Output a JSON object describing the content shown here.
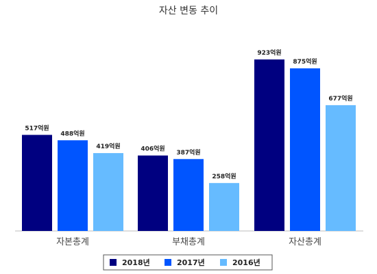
{
  "chart_data": {
    "type": "bar",
    "title": "자산 변동 추이",
    "categories": [
      "자본총계",
      "부채총계",
      "자산총계"
    ],
    "unit": "억원",
    "series": [
      {
        "name": "2018년",
        "color": "#000080",
        "values": [
          517,
          406,
          923
        ]
      },
      {
        "name": "2017년",
        "color": "#0055FF",
        "values": [
          488,
          387,
          875
        ]
      },
      {
        "name": "2016년",
        "color": "#66BBFF",
        "values": [
          419,
          258,
          677
        ]
      }
    ],
    "ylim": [
      0,
      1000
    ],
    "grid": false,
    "legend": "bottom"
  }
}
